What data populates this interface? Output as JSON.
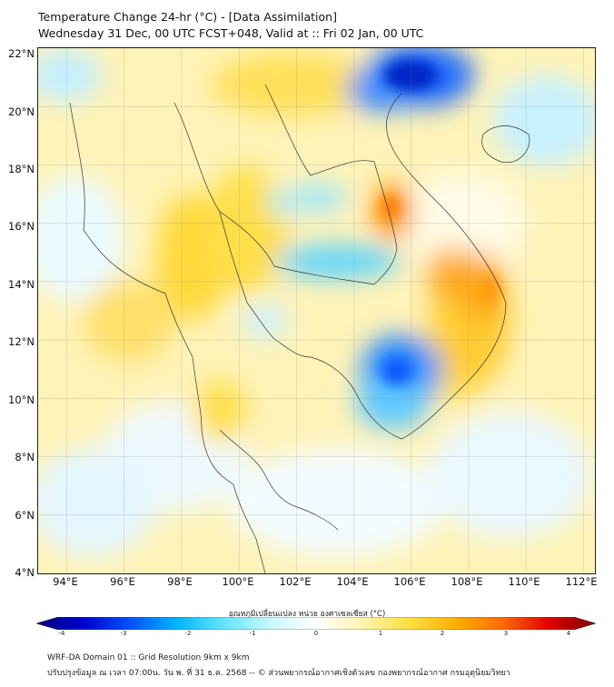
{
  "header": {
    "title_line1": "Temperature Change 24-hr (°C) - [Data Assimilation]",
    "title_line2": "Wednesday 31 Dec, 00 UTC FCST+048, Valid at :: Fri 02 Jan, 00 UTC"
  },
  "map": {
    "lat_labels": [
      "22°N",
      "20°N",
      "18°N",
      "16°N",
      "14°N",
      "12°N",
      "10°N",
      "8°N",
      "6°N",
      "4°N"
    ],
    "lon_labels": [
      "94°E",
      "96°E",
      "98°E",
      "100°E",
      "102°E",
      "104°E",
      "106°E",
      "108°E",
      "110°E",
      "112°E"
    ],
    "lat_range": [
      4,
      22
    ],
    "lon_range": [
      93,
      112.4
    ],
    "gridlines": true
  },
  "colorbar": {
    "title": "อุณหภูมิเปลี่ยนแปลง หน่วย องศาเซลเซียส (°C)",
    "ticks": [
      "-4",
      "-3",
      "-2",
      "-1",
      "0",
      "1",
      "2",
      "3",
      "4"
    ],
    "range": [
      -4,
      4
    ],
    "colors": [
      "#00007f",
      "#0000d0",
      "#0050ff",
      "#00b4ff",
      "#5fe6ff",
      "#c8f7ff",
      "#ffffff",
      "#fff4b0",
      "#ffdf3c",
      "#ffb000",
      "#ff6a00",
      "#e00000",
      "#7f0000"
    ]
  },
  "footer": {
    "line1": "WRF-DA Domain 01 :: Grid Resolution 9km x 9km",
    "line2": "ปรับปรุงข้อมูล ณ เวลา 07:00น. วัน พ. ที่ 31 ธ.ค. 2568 -- © ส่วนพยากรณ์อากาศเชิงตัวเลข กองพยากรณ์อากาศ กรมอุตุนิยมวิทยา"
  }
}
